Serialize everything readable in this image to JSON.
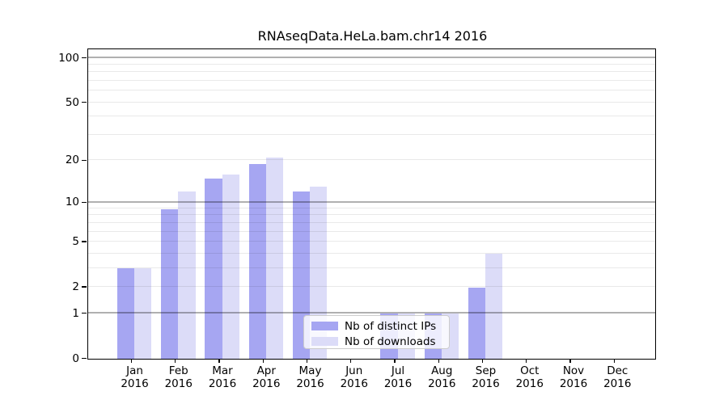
{
  "title": "RNAseqData.HeLa.bam.chr14 2016",
  "colors": {
    "distinct_ips_bar": "#a6a6f2",
    "downloads_bar": "#dcdcf8",
    "major_gridline": "rgba(0,0,0,0.31)",
    "minor_gridline": "rgba(0,0,0,0.085)"
  },
  "legend": {
    "items": [
      {
        "label": "Nb of distinct IPs",
        "color_key": "distinct_ips_bar"
      },
      {
        "label": "Nb of downloads",
        "color_key": "downloads_bar"
      }
    ]
  },
  "chart_data": {
    "type": "bar",
    "title": "RNAseqData.HeLa.bam.chr14 2016",
    "categories": [
      "Jan",
      "Feb",
      "Mar",
      "Apr",
      "May",
      "Jun",
      "Jul",
      "Aug",
      "Sep",
      "Oct",
      "Nov",
      "Dec"
    ],
    "year": "2016",
    "series": [
      {
        "name": "Nb of distinct IPs",
        "values": [
          3,
          9,
          15,
          19,
          12,
          0,
          1,
          1,
          2,
          0,
          0,
          0
        ]
      },
      {
        "name": "Nb of downloads",
        "values": [
          3,
          12,
          16,
          21,
          13,
          0,
          1,
          1,
          4,
          0,
          0,
          0
        ]
      }
    ],
    "xlabel": "",
    "ylabel": "",
    "yscale": "log10(1+y)",
    "ylim": [
      0,
      116
    ],
    "yticks": [
      100,
      50,
      20,
      10,
      5,
      2,
      1,
      0
    ],
    "major_gridlines": [
      1,
      10,
      100
    ],
    "minor_gridlines": [
      2,
      3,
      4,
      5,
      6,
      7,
      8,
      9,
      20,
      30,
      40,
      50,
      60,
      70,
      80,
      90
    ],
    "grid": true,
    "legend_position": "lower-center-inside"
  }
}
